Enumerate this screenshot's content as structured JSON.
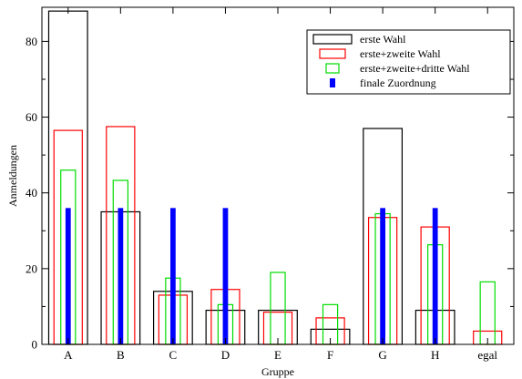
{
  "chart_data": {
    "type": "bar",
    "xlabel": "Gruppe",
    "ylabel": "Anmeldungen",
    "ylim": [
      0,
      89
    ],
    "yticks": [
      0,
      20,
      40,
      60,
      80
    ],
    "legend_position": "top-right",
    "categories": [
      "A",
      "B",
      "C",
      "D",
      "E",
      "F",
      "G",
      "H",
      "egal"
    ],
    "series": [
      {
        "name": "erste Wahl",
        "color": "#000000",
        "style": "outline-wide",
        "values": [
          88,
          35,
          14,
          9,
          9,
          4,
          57,
          9,
          0
        ]
      },
      {
        "name": "erste+zweite Wahl",
        "color": "#ff0000",
        "style": "outline-medium",
        "values": [
          56.5,
          57.5,
          13,
          14.5,
          8.5,
          7,
          33.5,
          31,
          3.5
        ]
      },
      {
        "name": "erste+zweite+dritte Wahl",
        "color": "#00dd00",
        "style": "outline-narrow",
        "values": [
          46,
          43.3,
          17.5,
          10.5,
          19,
          10.5,
          34.5,
          26.3,
          16.5
        ]
      },
      {
        "name": "finale Zuordnung",
        "color": "#0000ff",
        "style": "filled-thin",
        "values": [
          36,
          36,
          36,
          36,
          0,
          0,
          36,
          36,
          0
        ]
      }
    ]
  }
}
